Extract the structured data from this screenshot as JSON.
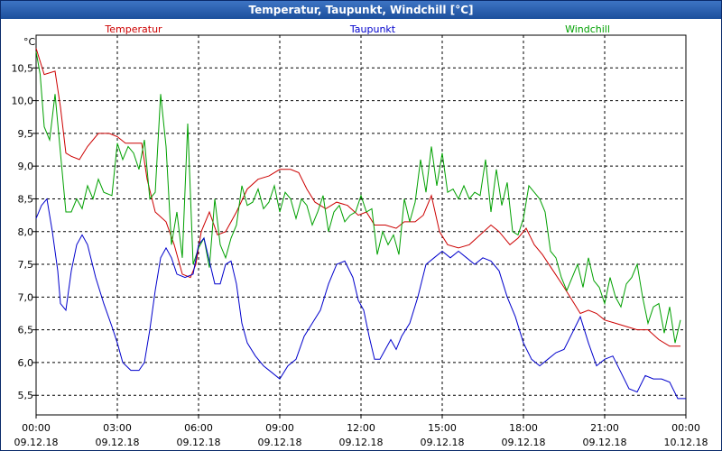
{
  "window": {
    "title": "Temperatur, Taupunkt, Windchill [°C]"
  },
  "chart_data": {
    "type": "line",
    "ylabel": "°C",
    "ylim": [
      5.2,
      11.0
    ],
    "y_ticks": [
      "5,5",
      "6,0",
      "6,5",
      "7,0",
      "7,5",
      "8,0",
      "8,5",
      "9,0",
      "9,5",
      "10,0",
      "10,5"
    ],
    "y_tick_values": [
      5.5,
      6.0,
      6.5,
      7.0,
      7.5,
      8.0,
      8.5,
      9.0,
      9.5,
      10.0,
      10.5
    ],
    "xlim": [
      0,
      24
    ],
    "x_ticks": [
      {
        "x": 0,
        "time": "00:00",
        "date": "09.12.18"
      },
      {
        "x": 3,
        "time": "03:00",
        "date": "09.12.18"
      },
      {
        "x": 6,
        "time": "06:00",
        "date": "09.12.18"
      },
      {
        "x": 9,
        "time": "09:00",
        "date": "09.12.18"
      },
      {
        "x": 12,
        "time": "12:00",
        "date": "09.12.18"
      },
      {
        "x": 15,
        "time": "15:00",
        "date": "09.12.18"
      },
      {
        "x": 18,
        "time": "18:00",
        "date": "09.12.18"
      },
      {
        "x": 21,
        "time": "21:00",
        "date": "09.12.18"
      },
      {
        "x": 24,
        "time": "00:00",
        "date": "10.12.18"
      }
    ],
    "grid": true,
    "series": [
      {
        "name": "Temperatur",
        "color": "#cc0000",
        "points": [
          [
            0,
            10.8
          ],
          [
            0.3,
            10.4
          ],
          [
            0.7,
            10.45
          ],
          [
            0.9,
            9.9
          ],
          [
            1.1,
            9.2
          ],
          [
            1.3,
            9.15
          ],
          [
            1.6,
            9.1
          ],
          [
            1.9,
            9.3
          ],
          [
            2.3,
            9.5
          ],
          [
            2.7,
            9.5
          ],
          [
            3.0,
            9.45
          ],
          [
            3.3,
            9.35
          ],
          [
            3.6,
            9.35
          ],
          [
            3.9,
            9.35
          ],
          [
            4.1,
            8.8
          ],
          [
            4.4,
            8.3
          ],
          [
            4.8,
            8.15
          ],
          [
            5.1,
            7.8
          ],
          [
            5.4,
            7.35
          ],
          [
            5.7,
            7.3
          ],
          [
            5.9,
            7.5
          ],
          [
            6.1,
            8.0
          ],
          [
            6.4,
            8.3
          ],
          [
            6.7,
            7.95
          ],
          [
            7.0,
            8.0
          ],
          [
            7.4,
            8.3
          ],
          [
            7.8,
            8.65
          ],
          [
            8.2,
            8.8
          ],
          [
            8.6,
            8.85
          ],
          [
            9.0,
            8.95
          ],
          [
            9.4,
            8.95
          ],
          [
            9.7,
            8.9
          ],
          [
            10.0,
            8.65
          ],
          [
            10.3,
            8.45
          ],
          [
            10.7,
            8.35
          ],
          [
            11.1,
            8.45
          ],
          [
            11.5,
            8.4
          ],
          [
            11.9,
            8.25
          ],
          [
            12.2,
            8.3
          ],
          [
            12.5,
            8.1
          ],
          [
            12.9,
            8.1
          ],
          [
            13.3,
            8.05
          ],
          [
            13.6,
            8.15
          ],
          [
            14.0,
            8.15
          ],
          [
            14.3,
            8.25
          ],
          [
            14.6,
            8.55
          ],
          [
            14.9,
            8.0
          ],
          [
            15.2,
            7.8
          ],
          [
            15.6,
            7.75
          ],
          [
            16.0,
            7.8
          ],
          [
            16.4,
            7.95
          ],
          [
            16.8,
            8.1
          ],
          [
            17.1,
            8.0
          ],
          [
            17.5,
            7.8
          ],
          [
            17.8,
            7.9
          ],
          [
            18.1,
            8.05
          ],
          [
            18.4,
            7.8
          ],
          [
            18.7,
            7.65
          ],
          [
            19.1,
            7.4
          ],
          [
            19.5,
            7.15
          ],
          [
            19.8,
            6.95
          ],
          [
            20.1,
            6.75
          ],
          [
            20.4,
            6.8
          ],
          [
            20.7,
            6.75
          ],
          [
            21.0,
            6.65
          ],
          [
            21.4,
            6.6
          ],
          [
            21.8,
            6.55
          ],
          [
            22.2,
            6.5
          ],
          [
            22.6,
            6.5
          ],
          [
            23.0,
            6.35
          ],
          [
            23.4,
            6.25
          ],
          [
            23.8,
            6.25
          ]
        ]
      },
      {
        "name": "Taupunkt",
        "color": "#0000cc",
        "points": [
          [
            0,
            8.2
          ],
          [
            0.2,
            8.4
          ],
          [
            0.4,
            8.5
          ],
          [
            0.6,
            8.0
          ],
          [
            0.8,
            7.4
          ],
          [
            0.9,
            6.9
          ],
          [
            1.1,
            6.8
          ],
          [
            1.3,
            7.4
          ],
          [
            1.5,
            7.8
          ],
          [
            1.7,
            7.95
          ],
          [
            1.9,
            7.8
          ],
          [
            2.2,
            7.3
          ],
          [
            2.5,
            6.9
          ],
          [
            2.8,
            6.55
          ],
          [
            3.0,
            6.3
          ],
          [
            3.2,
            6.0
          ],
          [
            3.5,
            5.88
          ],
          [
            3.8,
            5.88
          ],
          [
            4.0,
            6.0
          ],
          [
            4.2,
            6.5
          ],
          [
            4.4,
            7.1
          ],
          [
            4.6,
            7.6
          ],
          [
            4.8,
            7.75
          ],
          [
            5.0,
            7.6
          ],
          [
            5.2,
            7.35
          ],
          [
            5.5,
            7.3
          ],
          [
            5.8,
            7.35
          ],
          [
            6.0,
            7.8
          ],
          [
            6.2,
            7.9
          ],
          [
            6.4,
            7.55
          ],
          [
            6.6,
            7.2
          ],
          [
            6.8,
            7.2
          ],
          [
            7.0,
            7.5
          ],
          [
            7.2,
            7.55
          ],
          [
            7.4,
            7.2
          ],
          [
            7.6,
            6.6
          ],
          [
            7.8,
            6.3
          ],
          [
            8.1,
            6.1
          ],
          [
            8.4,
            5.95
          ],
          [
            8.7,
            5.85
          ],
          [
            9.0,
            5.75
          ],
          [
            9.3,
            5.95
          ],
          [
            9.6,
            6.05
          ],
          [
            9.9,
            6.4
          ],
          [
            10.2,
            6.6
          ],
          [
            10.5,
            6.8
          ],
          [
            10.8,
            7.2
          ],
          [
            11.1,
            7.5
          ],
          [
            11.4,
            7.55
          ],
          [
            11.7,
            7.3
          ],
          [
            11.9,
            6.95
          ],
          [
            12.1,
            6.8
          ],
          [
            12.3,
            6.4
          ],
          [
            12.5,
            6.05
          ],
          [
            12.7,
            6.05
          ],
          [
            12.9,
            6.2
          ],
          [
            13.1,
            6.35
          ],
          [
            13.3,
            6.2
          ],
          [
            13.5,
            6.4
          ],
          [
            13.8,
            6.6
          ],
          [
            14.1,
            7.0
          ],
          [
            14.4,
            7.5
          ],
          [
            14.7,
            7.6
          ],
          [
            15.0,
            7.7
          ],
          [
            15.3,
            7.6
          ],
          [
            15.6,
            7.7
          ],
          [
            15.9,
            7.6
          ],
          [
            16.2,
            7.5
          ],
          [
            16.5,
            7.6
          ],
          [
            16.8,
            7.55
          ],
          [
            17.1,
            7.4
          ],
          [
            17.4,
            7.0
          ],
          [
            17.7,
            6.7
          ],
          [
            18.0,
            6.3
          ],
          [
            18.3,
            6.05
          ],
          [
            18.6,
            5.95
          ],
          [
            18.9,
            6.05
          ],
          [
            19.2,
            6.15
          ],
          [
            19.5,
            6.2
          ],
          [
            19.8,
            6.45
          ],
          [
            20.1,
            6.7
          ],
          [
            20.4,
            6.3
          ],
          [
            20.7,
            5.95
          ],
          [
            21.0,
            6.05
          ],
          [
            21.3,
            6.1
          ],
          [
            21.6,
            5.85
          ],
          [
            21.9,
            5.6
          ],
          [
            22.2,
            5.55
          ],
          [
            22.5,
            5.8
          ],
          [
            22.8,
            5.75
          ],
          [
            23.1,
            5.75
          ],
          [
            23.4,
            5.7
          ],
          [
            23.7,
            5.45
          ],
          [
            24.0,
            5.45
          ]
        ]
      },
      {
        "name": "Windchill",
        "color": "#00a000",
        "points": [
          [
            0,
            10.75
          ],
          [
            0.15,
            10.4
          ],
          [
            0.3,
            9.6
          ],
          [
            0.5,
            9.4
          ],
          [
            0.7,
            10.1
          ],
          [
            0.9,
            9.2
          ],
          [
            1.1,
            8.3
          ],
          [
            1.3,
            8.3
          ],
          [
            1.5,
            8.5
          ],
          [
            1.7,
            8.35
          ],
          [
            1.9,
            8.7
          ],
          [
            2.1,
            8.5
          ],
          [
            2.3,
            8.8
          ],
          [
            2.5,
            8.6
          ],
          [
            2.8,
            8.55
          ],
          [
            3.0,
            9.35
          ],
          [
            3.2,
            9.1
          ],
          [
            3.4,
            9.3
          ],
          [
            3.6,
            9.2
          ],
          [
            3.8,
            8.95
          ],
          [
            4.0,
            9.4
          ],
          [
            4.2,
            8.5
          ],
          [
            4.4,
            8.6
          ],
          [
            4.6,
            10.1
          ],
          [
            4.8,
            9.3
          ],
          [
            5.0,
            7.8
          ],
          [
            5.2,
            8.3
          ],
          [
            5.4,
            7.6
          ],
          [
            5.6,
            9.65
          ],
          [
            5.8,
            7.5
          ],
          [
            6.0,
            7.75
          ],
          [
            6.2,
            7.9
          ],
          [
            6.4,
            7.45
          ],
          [
            6.6,
            8.5
          ],
          [
            6.8,
            7.8
          ],
          [
            7.0,
            7.6
          ],
          [
            7.2,
            7.9
          ],
          [
            7.4,
            8.1
          ],
          [
            7.6,
            8.7
          ],
          [
            7.8,
            8.4
          ],
          [
            8.0,
            8.45
          ],
          [
            8.2,
            8.65
          ],
          [
            8.4,
            8.35
          ],
          [
            8.6,
            8.45
          ],
          [
            8.8,
            8.7
          ],
          [
            9.0,
            8.3
          ],
          [
            9.2,
            8.6
          ],
          [
            9.4,
            8.5
          ],
          [
            9.6,
            8.2
          ],
          [
            9.8,
            8.5
          ],
          [
            10.0,
            8.4
          ],
          [
            10.2,
            8.1
          ],
          [
            10.4,
            8.3
          ],
          [
            10.6,
            8.55
          ],
          [
            10.8,
            8.0
          ],
          [
            11.0,
            8.3
          ],
          [
            11.2,
            8.4
          ],
          [
            11.4,
            8.15
          ],
          [
            11.6,
            8.25
          ],
          [
            11.8,
            8.3
          ],
          [
            12.0,
            8.55
          ],
          [
            12.2,
            8.3
          ],
          [
            12.4,
            8.35
          ],
          [
            12.6,
            7.65
          ],
          [
            12.8,
            8.0
          ],
          [
            13.0,
            7.8
          ],
          [
            13.2,
            7.95
          ],
          [
            13.4,
            7.65
          ],
          [
            13.6,
            8.5
          ],
          [
            13.8,
            8.15
          ],
          [
            14.0,
            8.45
          ],
          [
            14.2,
            9.1
          ],
          [
            14.4,
            8.6
          ],
          [
            14.6,
            9.3
          ],
          [
            14.8,
            8.7
          ],
          [
            15.0,
            9.2
          ],
          [
            15.2,
            8.6
          ],
          [
            15.4,
            8.65
          ],
          [
            15.6,
            8.5
          ],
          [
            15.8,
            8.7
          ],
          [
            16.0,
            8.5
          ],
          [
            16.2,
            8.6
          ],
          [
            16.4,
            8.55
          ],
          [
            16.6,
            9.1
          ],
          [
            16.8,
            8.3
          ],
          [
            17.0,
            8.95
          ],
          [
            17.2,
            8.4
          ],
          [
            17.4,
            8.75
          ],
          [
            17.6,
            8.0
          ],
          [
            17.8,
            7.95
          ],
          [
            18.0,
            8.2
          ],
          [
            18.2,
            8.7
          ],
          [
            18.4,
            8.6
          ],
          [
            18.6,
            8.5
          ],
          [
            18.8,
            8.3
          ],
          [
            19.0,
            7.7
          ],
          [
            19.2,
            7.6
          ],
          [
            19.4,
            7.3
          ],
          [
            19.6,
            7.1
          ],
          [
            19.8,
            7.3
          ],
          [
            20.0,
            7.5
          ],
          [
            20.2,
            7.15
          ],
          [
            20.4,
            7.6
          ],
          [
            20.6,
            7.25
          ],
          [
            20.8,
            7.15
          ],
          [
            21.0,
            6.9
          ],
          [
            21.2,
            7.3
          ],
          [
            21.4,
            7.0
          ],
          [
            21.6,
            6.85
          ],
          [
            21.8,
            7.2
          ],
          [
            22.0,
            7.3
          ],
          [
            22.2,
            7.5
          ],
          [
            22.4,
            7.0
          ],
          [
            22.6,
            6.6
          ],
          [
            22.8,
            6.85
          ],
          [
            23.0,
            6.9
          ],
          [
            23.2,
            6.45
          ],
          [
            23.4,
            6.85
          ],
          [
            23.6,
            6.3
          ],
          [
            23.8,
            6.65
          ]
        ]
      }
    ]
  }
}
